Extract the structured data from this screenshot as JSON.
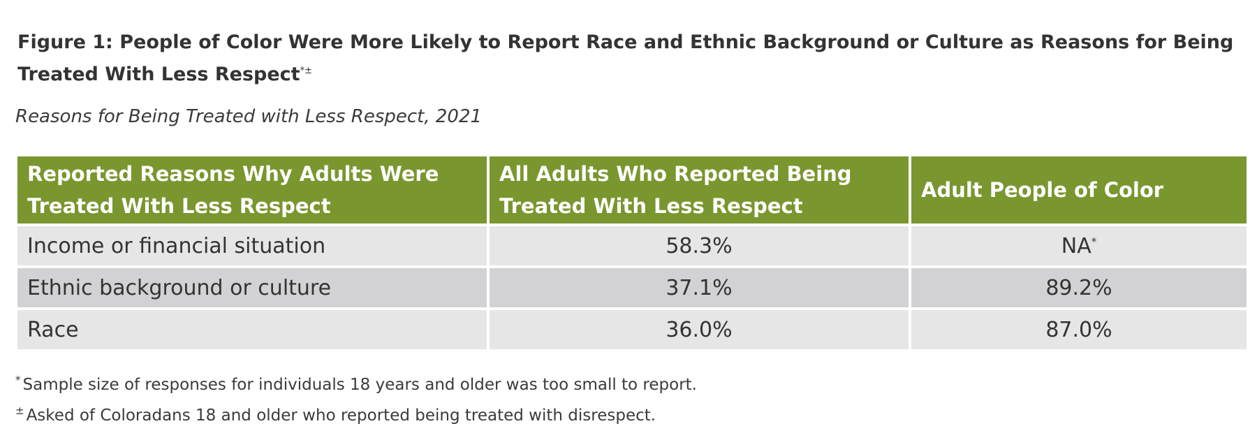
{
  "figure": {
    "title": "Figure 1: People of Color Were More Likely to Report Race and Ethnic Background or Culture as Reasons for Being Treated With Less Respect",
    "title_marks": "*±",
    "subtitle": "Reasons for Being Treated with Less Respect, 2021"
  },
  "table": {
    "headers": [
      "Reported Reasons Why Adults Were Treated With Less Respect",
      "All Adults Who Reported Being Treated With Less Respect",
      "Adult People of Color"
    ],
    "rows": [
      {
        "reason": "Income or financial situation",
        "all_adults": "58.3%",
        "people_of_color": "NA",
        "people_of_color_mark": "*"
      },
      {
        "reason": "Ethnic background or culture",
        "all_adults": "37.1%",
        "people_of_color": "89.2%",
        "people_of_color_mark": ""
      },
      {
        "reason": "Race",
        "all_adults": "36.0%",
        "people_of_color": "87.0%",
        "people_of_color_mark": ""
      }
    ],
    "colors": {
      "header_bg": "#7a962f",
      "row_light": "#e6e6e6",
      "row_dark": "#d2d2d4"
    }
  },
  "footnotes": [
    {
      "mark": "*",
      "text": "Sample size of responses for individuals 18 years and older was too small to report."
    },
    {
      "mark": "±",
      "text": "Asked of Coloradans 18 and older who reported being treated with disrespect."
    }
  ]
}
